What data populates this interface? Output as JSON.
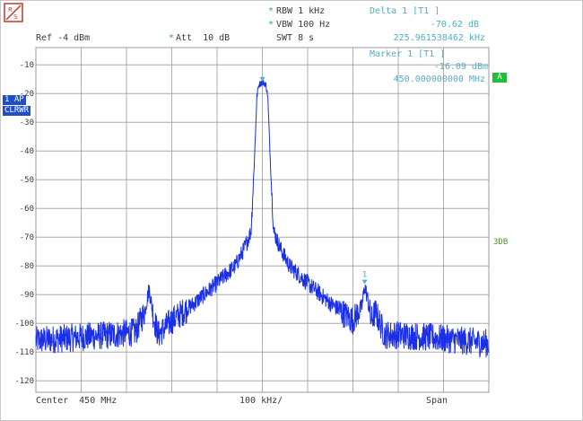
{
  "colors": {
    "trace": "#1a2fe6",
    "grid": "#9a9a9a",
    "readout": "#4fb0c6",
    "accent_green": "#1fbf3a",
    "badge_blue": "#1f4fc8"
  },
  "logo": {
    "icon": "rohde-schwarz-logo-icon"
  },
  "header": {
    "rbw": "RBW 1 kHz",
    "vbw": "VBW 100 Hz",
    "swt": "SWT 8 s",
    "ref": "Ref -4 dBm",
    "att": "Att  10 dB"
  },
  "readouts": {
    "delta_label": "Delta 1 [T1 ]",
    "delta_level": "-70.62 dB",
    "delta_freq": "225.961538462 kHz",
    "marker_label": "Marker 1 [T1 ]",
    "marker_level": "-16.09 dBm",
    "marker_freq": "450.000000000 MHz"
  },
  "side_labels": {
    "trace_mode_1": "1 AP",
    "trace_mode_2": "CLRWR",
    "trace_letter": "A",
    "db_label": "3DB"
  },
  "marker_1_label": "1",
  "footer": {
    "center": "Center  450 MHz",
    "division": "100 kHz/",
    "span": "Span"
  },
  "chart_data": {
    "type": "line",
    "y_ticks": [
      "-10",
      "-20",
      "-30",
      "-40",
      "-50",
      "-60",
      "-70",
      "-80",
      "-90",
      "-100",
      "-110",
      "-120"
    ],
    "ylim": [
      -124,
      -4
    ],
    "xlim_khz": [
      -500,
      500
    ],
    "grid": true,
    "series": [
      {
        "x_khz": [
          -500,
          -420,
          -330,
          -280,
          -260,
          -250,
          -240,
          -230,
          -200,
          -150,
          -100,
          -60,
          -40,
          -25,
          -18,
          -12,
          -8,
          0,
          8,
          12,
          18,
          25,
          40,
          60,
          100,
          150,
          200,
          220,
          226,
          232,
          240,
          250,
          270,
          300,
          380,
          440,
          500
        ],
        "y_dbm": [
          -106,
          -105,
          -104,
          -103,
          -96,
          -88,
          -98,
          -104,
          -99,
          -93,
          -86,
          -80,
          -74,
          -68,
          -45,
          -21,
          -17,
          -16,
          -17,
          -21,
          -45,
          -68,
          -74,
          -80,
          -86,
          -93,
          -99,
          -94,
          -87,
          -91,
          -99,
          -96,
          -104,
          -104,
          -105,
          -106,
          -107
        ]
      }
    ]
  }
}
